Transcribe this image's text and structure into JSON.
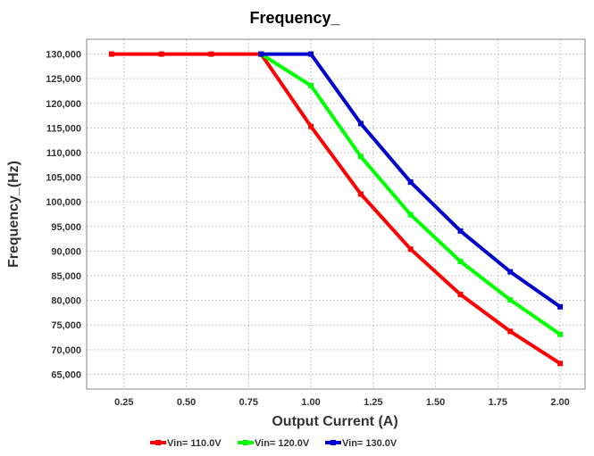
{
  "chart_data": {
    "type": "line",
    "title": "Frequency_",
    "xlabel": "Output Current (A)",
    "ylabel": "Frequency_(Hz)",
    "xlim": [
      0.1,
      2.1
    ],
    "ylim": [
      62000,
      133000
    ],
    "xticks": [
      0.25,
      0.5,
      0.75,
      1.0,
      1.25,
      1.5,
      1.75,
      2.0
    ],
    "xtick_labels": [
      "0.25",
      "0.50",
      "0.75",
      "1.00",
      "1.25",
      "1.50",
      "1.75",
      "2.00"
    ],
    "yticks": [
      65000,
      70000,
      75000,
      80000,
      85000,
      90000,
      95000,
      100000,
      105000,
      110000,
      115000,
      120000,
      125000,
      130000
    ],
    "ytick_labels": [
      "65,000",
      "70,000",
      "75,000",
      "80,000",
      "85,000",
      "90,000",
      "95,000",
      "100,000",
      "105,000",
      "110,000",
      "115,000",
      "120,000",
      "125,000",
      "130,000"
    ],
    "grid": true,
    "legend_position": "bottom",
    "series": [
      {
        "name": "Vin= 110.0V",
        "color": "#ff0000",
        "x": [
          0.2,
          0.4,
          0.6,
          0.8,
          1.0,
          1.2,
          1.4,
          1.6,
          1.8,
          2.0
        ],
        "y": [
          130000,
          130000,
          130000,
          130000,
          115300,
          101600,
          90400,
          81200,
          73700,
          67200
        ]
      },
      {
        "name": "Vin= 120.0V",
        "color": "#00ff00",
        "x": [
          0.8,
          1.0,
          1.2,
          1.4,
          1.6,
          1.8,
          2.0
        ],
        "y": [
          130000,
          123600,
          109200,
          97400,
          87900,
          80100,
          73100
        ]
      },
      {
        "name": "Vin= 130.0V",
        "color": "#0000cc",
        "x": [
          0.8,
          1.0,
          1.2,
          1.4,
          1.6,
          1.8,
          2.0
        ],
        "y": [
          130000,
          130000,
          115900,
          104000,
          94100,
          85800,
          78700
        ]
      }
    ]
  }
}
